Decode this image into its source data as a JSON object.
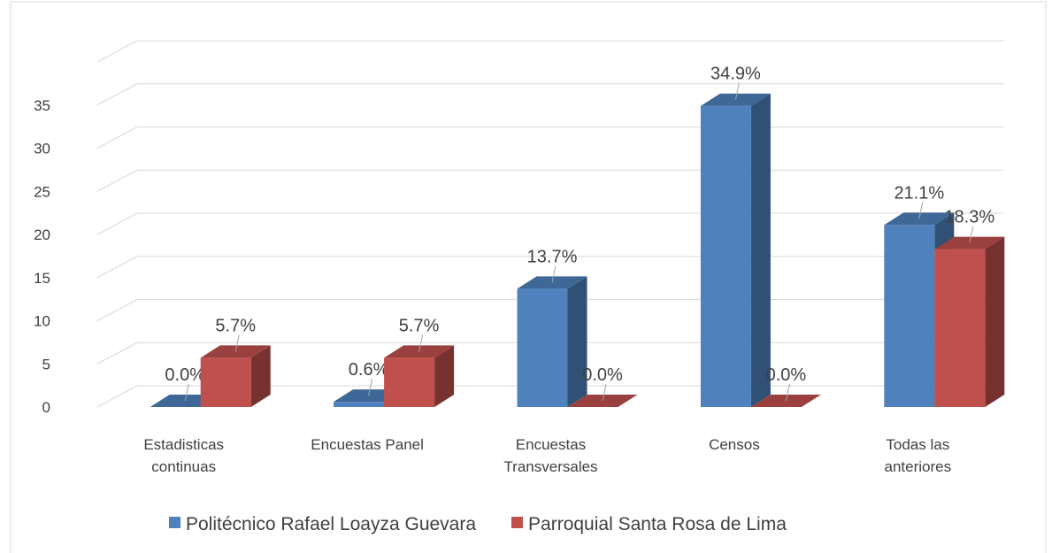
{
  "chart_data": {
    "type": "bar3d",
    "categories": [
      "Estadisticas continuas",
      "Encuestas Panel",
      "Encuestas Transversales",
      "Censos",
      "Todas las anteriores"
    ],
    "series": [
      {
        "name": "Politécnico Rafael Loayza Guevara",
        "color": "#4f81bd",
        "values": [
          0.0,
          0.6,
          13.7,
          34.9,
          21.1
        ],
        "value_labels": [
          "0.0%",
          "0.6%",
          "13.7%",
          "34.9%",
          "21.1%"
        ]
      },
      {
        "name": "Parroquial Santa Rosa de Lima",
        "color": "#c0504d",
        "values": [
          5.7,
          5.7,
          0.0,
          0.0,
          18.3
        ],
        "value_labels": [
          "5.7%",
          "5.7%",
          "0.0%",
          "0.0%",
          "18.3%"
        ]
      }
    ],
    "ylim": [
      0,
      40
    ],
    "yticks": [
      0,
      5,
      10,
      15,
      20,
      25,
      30,
      35
    ],
    "grid": true,
    "legend": "bottom"
  }
}
